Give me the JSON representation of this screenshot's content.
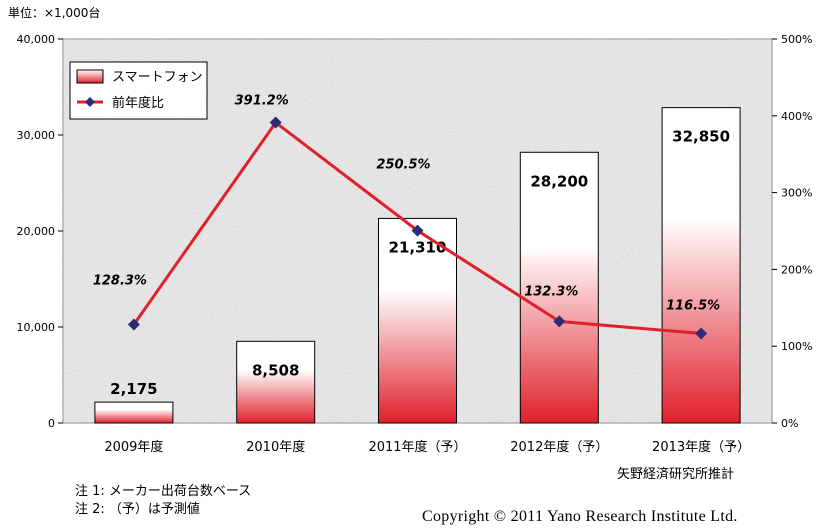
{
  "unit_label": "単位：×1,000台",
  "source": "矢野経済研究所推計",
  "notes": [
    "注 1: メーカー出荷台数ベース",
    "注 2: （予）は予測値"
  ],
  "copyright": "Copyright © 2011 Yano Research Institute Ltd.",
  "colors": {
    "bar_fill": "#e0202a",
    "line": "#e0202a",
    "marker": "#2e2a7a"
  },
  "chart_data": {
    "type": "bar",
    "categories": [
      "2009年度",
      "2010年度",
      "2011年度（予）",
      "2012年度（予）",
      "2013年度（予）"
    ],
    "series": [
      {
        "name": "スマートフォン",
        "type": "bar",
        "axis": "left",
        "values": [
          2175,
          8508,
          21310,
          28200,
          32850
        ],
        "labels": [
          "2,175",
          "8,508",
          "21,310",
          "28,200",
          "32,850"
        ]
      },
      {
        "name": "前年度比",
        "type": "line",
        "axis": "right",
        "values": [
          128.3,
          391.2,
          250.5,
          132.3,
          116.5
        ],
        "labels": [
          "128.3%",
          "391.2%",
          "250.5%",
          "132.3%",
          "116.5%"
        ]
      }
    ],
    "ylim": [
      0,
      40000
    ],
    "yticks": [
      "0",
      "10,000",
      "20,000",
      "30,000",
      "40,000"
    ],
    "y2lim": [
      0,
      500
    ],
    "y2ticks": [
      "0%",
      "100%",
      "200%",
      "300%",
      "400%",
      "500%"
    ],
    "legend_position": "top-left",
    "grid": false
  }
}
